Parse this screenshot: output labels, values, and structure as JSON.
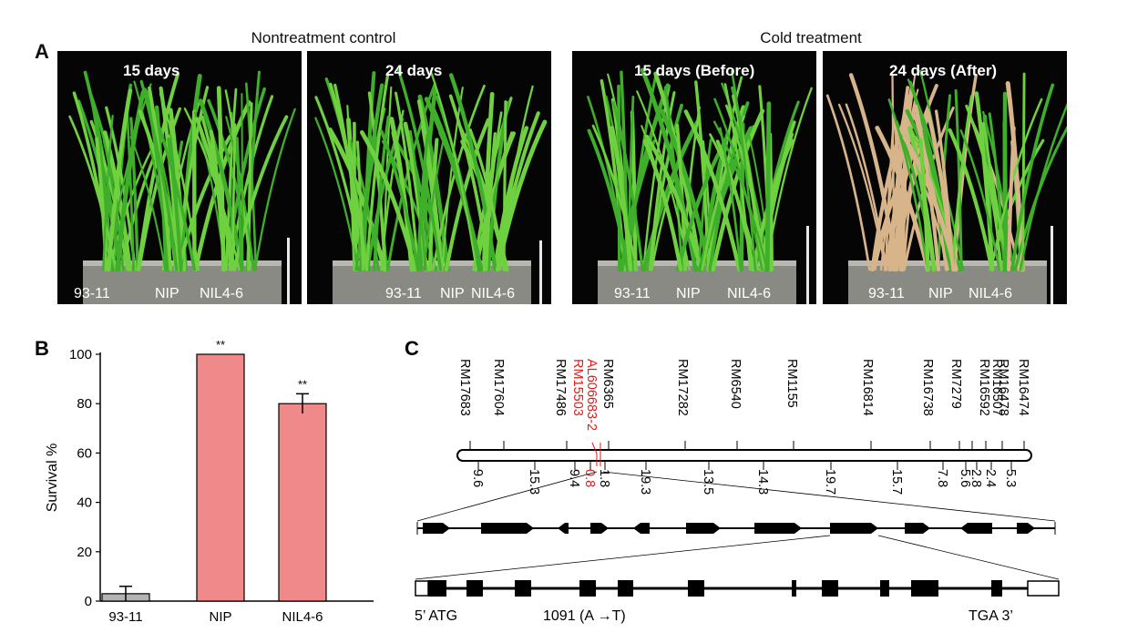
{
  "panel_a": {
    "letter": "A",
    "groups": [
      "Nontreatment control",
      "Cold treatment"
    ],
    "photos": [
      {
        "title": "15 days",
        "labels": [
          "93-11",
          "NIP",
          "NIL4-6"
        ],
        "wilted": false
      },
      {
        "title": "24 days",
        "labels": [
          "93-11",
          "NIP",
          "NIL4-6"
        ],
        "wilted": false
      },
      {
        "title": "15 days (Before)",
        "labels": [
          "93-11",
          "NIP",
          "NIL4-6"
        ],
        "wilted": false
      },
      {
        "title": "24 days (After)",
        "labels": [
          "93-11",
          "NIP",
          "NIL4-6"
        ],
        "wilted": true
      }
    ],
    "colors": {
      "leaf": "#3fae2a",
      "leaf_light": "#6fd040",
      "leaf_dry": "#d8b48a",
      "tray": "#8a8a84"
    }
  },
  "panel_b": {
    "letter": "B",
    "chart_data": {
      "type": "bar",
      "categories": [
        "93-11",
        "NIP",
        "NIL4-6"
      ],
      "values": [
        3,
        100,
        80
      ],
      "errors": [
        3,
        0,
        4
      ],
      "significance": [
        "",
        "**",
        "**"
      ],
      "bar_colors": [
        "#b3b3b3",
        "#f08a8a",
        "#f08a8a"
      ],
      "ylabel": "Survival %",
      "ylim": [
        0,
        100
      ],
      "yticks": [
        0,
        20,
        40,
        60,
        80,
        100
      ]
    }
  },
  "panel_c": {
    "letter": "C",
    "markers": [
      {
        "name": "RM17683",
        "highlight": false
      },
      {
        "name": "RM17604",
        "highlight": false
      },
      {
        "name": "RM17486",
        "highlight": false
      },
      {
        "name": "AL606683-2",
        "highlight": true
      },
      {
        "name": "RM15503",
        "highlight": true
      },
      {
        "name": "RM6365",
        "highlight": false
      },
      {
        "name": "RM17282",
        "highlight": false
      },
      {
        "name": "RM6540",
        "highlight": false
      },
      {
        "name": "RM1155",
        "highlight": false
      },
      {
        "name": "RM16814",
        "highlight": false
      },
      {
        "name": "RM16738",
        "highlight": false
      },
      {
        "name": "RM7279",
        "highlight": false
      },
      {
        "name": "RM16592",
        "highlight": false
      },
      {
        "name": "RM16507",
        "highlight": false
      },
      {
        "name": "RM16478",
        "highlight": false
      },
      {
        "name": "RM16474",
        "highlight": false
      }
    ],
    "distances": [
      {
        "value": "9.6",
        "highlight": false
      },
      {
        "value": "15.3",
        "highlight": false
      },
      {
        "value": "9.4",
        "highlight": false
      },
      {
        "value": "0.8",
        "highlight": true
      },
      {
        "value": "1.8",
        "highlight": false
      },
      {
        "value": "19.3",
        "highlight": false
      },
      {
        "value": "13.5",
        "highlight": false
      },
      {
        "value": "14.3",
        "highlight": false
      },
      {
        "value": "19.7",
        "highlight": false
      },
      {
        "value": "15.7",
        "highlight": false
      },
      {
        "value": "7.8",
        "highlight": false
      },
      {
        "value": "5.6",
        "highlight": false
      },
      {
        "value": "2.8",
        "highlight": false
      },
      {
        "value": "2.4",
        "highlight": false
      },
      {
        "value": "5.3",
        "highlight": false
      }
    ],
    "gene_labels": {
      "start": "5’ ATG",
      "mutation": "1091 (A →T)",
      "end": "TGA 3’"
    },
    "highlight_color": "#e11b1b"
  }
}
